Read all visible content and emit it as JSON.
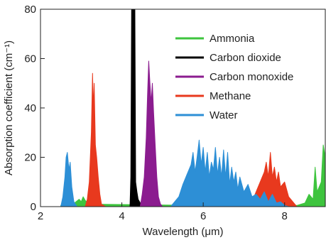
{
  "chart_data": {
    "type": "area",
    "title": "",
    "xlabel": "Wavelength (μm)",
    "ylabel": "Absorption coefficient (cm⁻¹)",
    "xlim": [
      2,
      9
    ],
    "ylim": [
      0,
      80
    ],
    "xticks": [
      2,
      4,
      6,
      8
    ],
    "yticks": [
      0,
      20,
      40,
      60,
      80
    ],
    "grid": false,
    "legend_position": "top-right",
    "series": [
      {
        "name": "Ammonia",
        "color": "#3ec43e",
        "points": [
          [
            2.5,
            0.5
          ],
          [
            2.8,
            1
          ],
          [
            2.95,
            3
          ],
          [
            3.0,
            2
          ],
          [
            3.05,
            4
          ],
          [
            3.1,
            2.5
          ],
          [
            3.2,
            1
          ],
          [
            5.8,
            0.5
          ],
          [
            6.0,
            2
          ],
          [
            6.1,
            3
          ],
          [
            6.2,
            5
          ],
          [
            6.3,
            3.5
          ],
          [
            6.4,
            6
          ],
          [
            6.5,
            4
          ],
          [
            6.6,
            3
          ],
          [
            6.8,
            1.5
          ],
          [
            7.0,
            0.5
          ],
          [
            8.3,
            0.5
          ],
          [
            8.5,
            1.5
          ],
          [
            8.6,
            5
          ],
          [
            8.7,
            3
          ],
          [
            8.75,
            16
          ],
          [
            8.8,
            6
          ],
          [
            8.9,
            10
          ],
          [
            8.95,
            25
          ],
          [
            9.0,
            20
          ]
        ]
      },
      {
        "name": "Carbon dioxide",
        "color": "#000000",
        "points": [
          [
            4.2,
            0
          ],
          [
            4.22,
            12
          ],
          [
            4.24,
            80
          ],
          [
            4.28,
            80
          ],
          [
            4.32,
            80
          ],
          [
            4.34,
            10
          ],
          [
            4.37,
            6
          ],
          [
            4.4,
            3
          ],
          [
            4.45,
            1.5
          ],
          [
            4.5,
            0
          ]
        ]
      },
      {
        "name": "Carbon monoxide",
        "color": "#8b1c8f",
        "points": [
          [
            4.45,
            0
          ],
          [
            4.5,
            5
          ],
          [
            4.55,
            12
          ],
          [
            4.6,
            28
          ],
          [
            4.63,
            45
          ],
          [
            4.66,
            59
          ],
          [
            4.69,
            50
          ],
          [
            4.72,
            42
          ],
          [
            4.75,
            50
          ],
          [
            4.78,
            38
          ],
          [
            4.82,
            25
          ],
          [
            4.86,
            12
          ],
          [
            4.9,
            4
          ],
          [
            4.95,
            1
          ],
          [
            5.0,
            0
          ]
        ]
      },
      {
        "name": "Methane",
        "color": "#e8391e",
        "points": [
          [
            3.1,
            0
          ],
          [
            3.15,
            3
          ],
          [
            3.2,
            10
          ],
          [
            3.25,
            30
          ],
          [
            3.28,
            54
          ],
          [
            3.3,
            40
          ],
          [
            3.32,
            50
          ],
          [
            3.35,
            25
          ],
          [
            3.38,
            20
          ],
          [
            3.42,
            12
          ],
          [
            3.46,
            5
          ],
          [
            3.5,
            1
          ],
          [
            3.6,
            0
          ],
          [
            7.1,
            0
          ],
          [
            7.2,
            2
          ],
          [
            7.3,
            6
          ],
          [
            7.4,
            10
          ],
          [
            7.5,
            14
          ],
          [
            7.55,
            18
          ],
          [
            7.6,
            12
          ],
          [
            7.65,
            22
          ],
          [
            7.7,
            12
          ],
          [
            7.75,
            16
          ],
          [
            7.8,
            10
          ],
          [
            7.85,
            14
          ],
          [
            7.9,
            8
          ],
          [
            8.0,
            10
          ],
          [
            8.1,
            4
          ],
          [
            8.2,
            2
          ],
          [
            8.3,
            0
          ]
        ]
      },
      {
        "name": "Water",
        "color": "#2d8fd6",
        "points": [
          [
            2.5,
            0
          ],
          [
            2.55,
            4
          ],
          [
            2.6,
            12
          ],
          [
            2.63,
            20
          ],
          [
            2.66,
            22
          ],
          [
            2.7,
            15
          ],
          [
            2.73,
            18
          ],
          [
            2.77,
            8
          ],
          [
            2.82,
            2
          ],
          [
            2.9,
            0
          ],
          [
            5.2,
            0
          ],
          [
            5.3,
            2
          ],
          [
            5.4,
            4
          ],
          [
            5.5,
            9
          ],
          [
            5.6,
            13
          ],
          [
            5.7,
            17
          ],
          [
            5.75,
            22
          ],
          [
            5.8,
            14
          ],
          [
            5.85,
            20
          ],
          [
            5.9,
            27
          ],
          [
            5.95,
            17
          ],
          [
            6.0,
            24
          ],
          [
            6.05,
            14
          ],
          [
            6.1,
            22
          ],
          [
            6.15,
            12
          ],
          [
            6.2,
            18
          ],
          [
            6.25,
            15
          ],
          [
            6.3,
            24
          ],
          [
            6.35,
            13
          ],
          [
            6.4,
            20
          ],
          [
            6.45,
            12
          ],
          [
            6.5,
            23
          ],
          [
            6.55,
            12
          ],
          [
            6.6,
            22
          ],
          [
            6.65,
            9
          ],
          [
            6.7,
            16
          ],
          [
            6.75,
            10
          ],
          [
            6.8,
            14
          ],
          [
            6.85,
            7
          ],
          [
            6.9,
            12
          ],
          [
            7.0,
            6
          ],
          [
            7.1,
            9
          ],
          [
            7.2,
            4
          ],
          [
            7.3,
            5
          ],
          [
            7.4,
            3
          ],
          [
            7.5,
            6
          ],
          [
            7.6,
            2
          ],
          [
            7.7,
            5
          ],
          [
            7.8,
            1.5
          ],
          [
            7.9,
            2
          ],
          [
            8.0,
            0.5
          ],
          [
            8.1,
            0
          ]
        ]
      }
    ]
  }
}
